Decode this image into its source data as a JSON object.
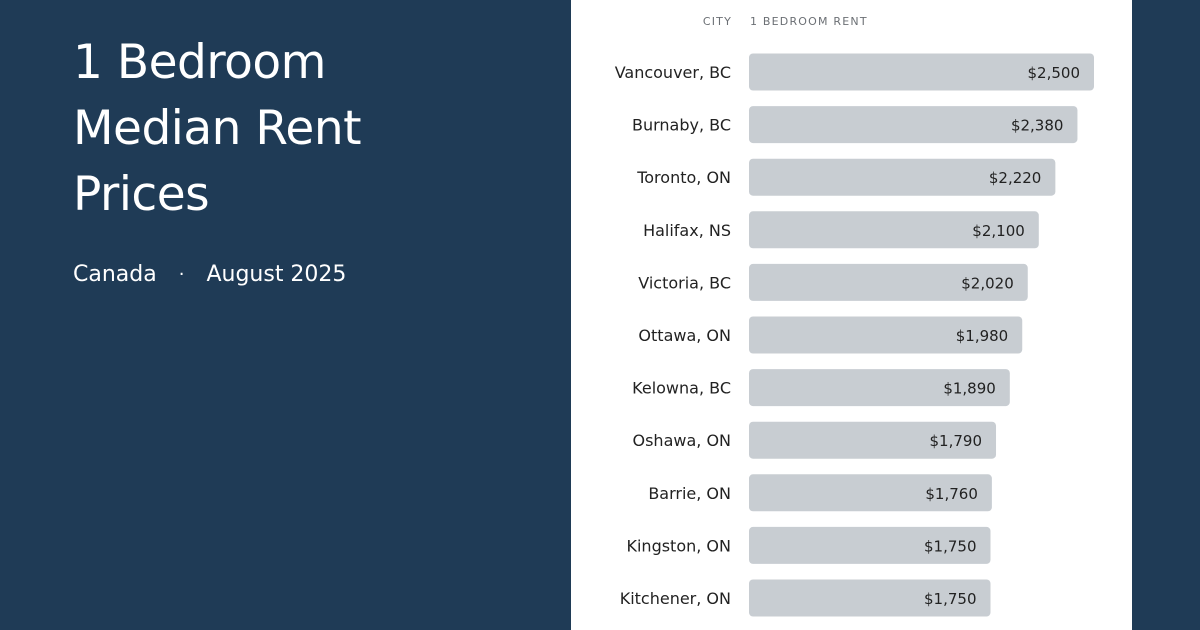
{
  "heading": {
    "title_lines": [
      "1 Bedroom",
      "Median Rent",
      "Prices"
    ],
    "country": "Canada",
    "separator": "·",
    "period": "August 2025"
  },
  "columns": {
    "city": "CITY",
    "rent": "1 BEDROOM RENT"
  },
  "colors": {
    "background": "#1f3b56",
    "panel": "#ffffff",
    "bar": "#c8cdd2",
    "text": "#222222"
  },
  "chart_data": {
    "type": "bar",
    "orientation": "horizontal",
    "title": "",
    "xlabel": "1 BEDROOM RENT",
    "ylabel": "CITY",
    "grid": false,
    "xlim": [
      0,
      2500
    ],
    "categories": [
      "Vancouver, BC",
      "Burnaby, BC",
      "Toronto, ON",
      "Halifax, NS",
      "Victoria, BC",
      "Ottawa, ON",
      "Kelowna, BC",
      "Oshawa, ON",
      "Barrie, ON",
      "Kingston, ON",
      "Kitchener, ON"
    ],
    "values": [
      2500,
      2380,
      2220,
      2100,
      2020,
      1980,
      1890,
      1790,
      1760,
      1750,
      1750
    ],
    "value_labels": [
      "$2,500",
      "$2,380",
      "$2,220",
      "$2,100",
      "$2,020",
      "$1,980",
      "$1,890",
      "$1,790",
      "$1,760",
      "$1,750",
      "$1,750"
    ]
  }
}
